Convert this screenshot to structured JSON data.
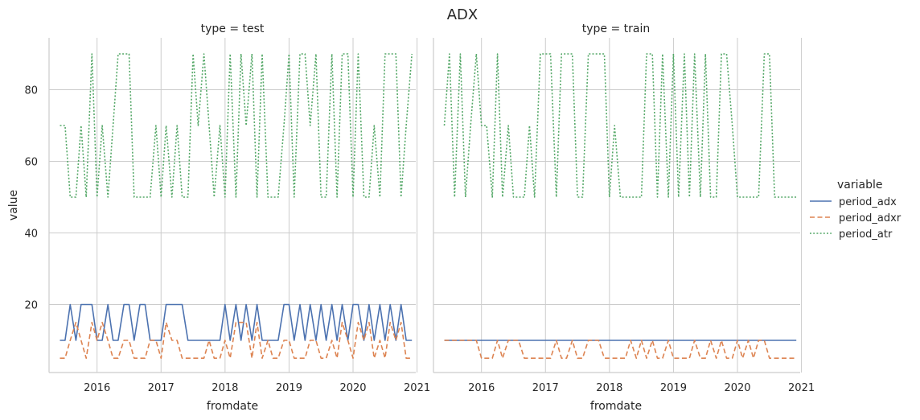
{
  "chart_data": {
    "type": "line",
    "title": "ADX",
    "xlabel": "fromdate",
    "ylabel": "value",
    "xlim": [
      2015.25,
      2020.98
    ],
    "ylim": [
      1,
      94.5
    ],
    "xticks": [
      2016,
      2017,
      2018,
      2019,
      2020,
      2021
    ],
    "yticks": [
      20,
      40,
      60,
      80
    ],
    "grid": true,
    "legend": {
      "title": "variable",
      "placement": "right"
    },
    "series_styles": [
      {
        "name": "period_adx",
        "color": "#4C72B0",
        "dash": "solid"
      },
      {
        "name": "period_adxr",
        "color": "#DD8452",
        "dash": "dashed"
      },
      {
        "name": "period_atr",
        "color": "#55A868",
        "dash": "dotted"
      }
    ],
    "panels": [
      {
        "title": "type = test",
        "series": [
          {
            "name": "period_adx",
            "x": [
              2015.42,
              2015.5,
              2015.58,
              2015.67,
              2015.75,
              2015.83,
              2015.92,
              2016.0,
              2016.08,
              2016.17,
              2016.25,
              2016.33,
              2016.42,
              2016.5,
              2016.58,
              2016.67,
              2016.75,
              2016.83,
              2016.92,
              2017.0,
              2017.08,
              2017.17,
              2017.25,
              2017.33,
              2017.42,
              2017.5,
              2017.58,
              2017.67,
              2017.75,
              2017.83,
              2017.92,
              2018.0,
              2018.08,
              2018.17,
              2018.25,
              2018.33,
              2018.42,
              2018.5,
              2018.58,
              2018.67,
              2018.75,
              2018.83,
              2018.92,
              2019.0,
              2019.08,
              2019.17,
              2019.25,
              2019.33,
              2019.42,
              2019.5,
              2019.58,
              2019.67,
              2019.75,
              2019.83,
              2019.92,
              2020.0,
              2020.08,
              2020.17,
              2020.25,
              2020.33,
              2020.42,
              2020.5,
              2020.58,
              2020.67,
              2020.75,
              2020.83,
              2020.92
            ],
            "y": [
              10,
              10,
              20,
              10,
              20,
              20,
              20,
              10,
              10,
              20,
              10,
              10,
              20,
              20,
              10,
              20,
              20,
              10,
              10,
              10,
              20,
              20,
              20,
              20,
              10,
              10,
              10,
              10,
              10,
              10,
              10,
              20,
              10,
              20,
              10,
              20,
              10,
              20,
              10,
              10,
              10,
              10,
              20,
              20,
              10,
              20,
              10,
              20,
              10,
              20,
              10,
              20,
              10,
              20,
              10,
              20,
              20,
              10,
              20,
              10,
              20,
              10,
              20,
              10,
              20,
              10,
              10
            ]
          },
          {
            "name": "period_adxr",
            "x": [
              2015.42,
              2015.5,
              2015.58,
              2015.67,
              2015.75,
              2015.83,
              2015.92,
              2016.0,
              2016.08,
              2016.17,
              2016.25,
              2016.33,
              2016.42,
              2016.5,
              2016.58,
              2016.67,
              2016.75,
              2016.83,
              2016.92,
              2017.0,
              2017.08,
              2017.17,
              2017.25,
              2017.33,
              2017.42,
              2017.5,
              2017.58,
              2017.67,
              2017.75,
              2017.83,
              2017.92,
              2018.0,
              2018.08,
              2018.17,
              2018.25,
              2018.33,
              2018.42,
              2018.5,
              2018.58,
              2018.67,
              2018.75,
              2018.83,
              2018.92,
              2019.0,
              2019.08,
              2019.17,
              2019.25,
              2019.33,
              2019.42,
              2019.5,
              2019.58,
              2019.67,
              2019.75,
              2019.83,
              2019.92,
              2020.0,
              2020.08,
              2020.17,
              2020.25,
              2020.33,
              2020.42,
              2020.5,
              2020.58,
              2020.67,
              2020.75,
              2020.83,
              2020.92
            ],
            "y": [
              5,
              5,
              10,
              15,
              10,
              5,
              15,
              10,
              15,
              10,
              5,
              5,
              10,
              10,
              5,
              5,
              5,
              10,
              10,
              5,
              15,
              10,
              10,
              5,
              5,
              5,
              5,
              5,
              10,
              5,
              5,
              10,
              5,
              15,
              15,
              15,
              5,
              15,
              5,
              10,
              5,
              5,
              10,
              10,
              5,
              5,
              5,
              10,
              10,
              5,
              5,
              10,
              5,
              15,
              10,
              5,
              15,
              10,
              15,
              5,
              10,
              5,
              15,
              10,
              15,
              5,
              5
            ]
          },
          {
            "name": "period_atr",
            "x": [
              2015.42,
              2015.5,
              2015.58,
              2015.67,
              2015.75,
              2015.83,
              2015.92,
              2016.0,
              2016.08,
              2016.17,
              2016.25,
              2016.33,
              2016.42,
              2016.5,
              2016.58,
              2016.67,
              2016.75,
              2016.83,
              2016.92,
              2017.0,
              2017.08,
              2017.17,
              2017.25,
              2017.33,
              2017.42,
              2017.5,
              2017.58,
              2017.67,
              2017.75,
              2017.83,
              2017.92,
              2018.0,
              2018.08,
              2018.17,
              2018.25,
              2018.33,
              2018.42,
              2018.5,
              2018.58,
              2018.67,
              2018.75,
              2018.83,
              2018.92,
              2019.0,
              2019.08,
              2019.17,
              2019.25,
              2019.33,
              2019.42,
              2019.5,
              2019.58,
              2019.67,
              2019.75,
              2019.83,
              2019.92,
              2020.0,
              2020.08,
              2020.17,
              2020.25,
              2020.33,
              2020.42,
              2020.5,
              2020.58,
              2020.67,
              2020.75,
              2020.83,
              2020.92
            ],
            "y": [
              70,
              70,
              50,
              50,
              70,
              50,
              90,
              50,
              70,
              50,
              70,
              90,
              90,
              90,
              50,
              50,
              50,
              50,
              70,
              50,
              70,
              50,
              70,
              50,
              50,
              90,
              70,
              90,
              70,
              50,
              70,
              50,
              90,
              50,
              90,
              70,
              90,
              50,
              90,
              50,
              50,
              50,
              70,
              90,
              50,
              90,
              90,
              70,
              90,
              50,
              50,
              90,
              50,
              90,
              90,
              50,
              90,
              50,
              50,
              70,
              50,
              90,
              90,
              90,
              50,
              70,
              90
            ]
          }
        ]
      },
      {
        "title": "type = train",
        "series": [
          {
            "name": "period_adx",
            "x": [
              2015.42,
              2020.92
            ],
            "y": [
              10,
              10
            ]
          },
          {
            "name": "period_adxr",
            "x": [
              2015.42,
              2015.5,
              2015.58,
              2015.67,
              2015.75,
              2015.83,
              2015.92,
              2016.0,
              2016.08,
              2016.17,
              2016.25,
              2016.33,
              2016.42,
              2016.5,
              2016.58,
              2016.67,
              2016.75,
              2016.83,
              2016.92,
              2017.0,
              2017.08,
              2017.17,
              2017.25,
              2017.33,
              2017.42,
              2017.5,
              2017.58,
              2017.67,
              2017.75,
              2017.83,
              2017.92,
              2018.0,
              2018.08,
              2018.17,
              2018.25,
              2018.33,
              2018.42,
              2018.5,
              2018.58,
              2018.67,
              2018.75,
              2018.83,
              2018.92,
              2019.0,
              2019.08,
              2019.17,
              2019.25,
              2019.33,
              2019.42,
              2019.5,
              2019.58,
              2019.67,
              2019.75,
              2019.83,
              2019.92,
              2020.0,
              2020.08,
              2020.17,
              2020.25,
              2020.33,
              2020.42,
              2020.5,
              2020.58,
              2020.67,
              2020.75,
              2020.83,
              2020.92
            ],
            "y": [
              10,
              10,
              10,
              10,
              10,
              10,
              10,
              5,
              5,
              5,
              10,
              5,
              10,
              10,
              10,
              5,
              5,
              5,
              5,
              5,
              5,
              10,
              5,
              5,
              10,
              5,
              5,
              10,
              10,
              10,
              5,
              5,
              5,
              5,
              5,
              10,
              5,
              10,
              5,
              10,
              5,
              5,
              10,
              5,
              5,
              5,
              5,
              10,
              5,
              5,
              10,
              5,
              10,
              5,
              5,
              10,
              5,
              10,
              5,
              10,
              10,
              5,
              5,
              5,
              5,
              5,
              5
            ]
          },
          {
            "name": "period_atr",
            "x": [
              2015.42,
              2015.5,
              2015.58,
              2015.67,
              2015.75,
              2015.83,
              2015.92,
              2016.0,
              2016.08,
              2016.17,
              2016.25,
              2016.33,
              2016.42,
              2016.5,
              2016.58,
              2016.67,
              2016.75,
              2016.83,
              2016.92,
              2017.0,
              2017.08,
              2017.17,
              2017.25,
              2017.33,
              2017.42,
              2017.5,
              2017.58,
              2017.67,
              2017.75,
              2017.83,
              2017.92,
              2018.0,
              2018.08,
              2018.17,
              2018.25,
              2018.33,
              2018.42,
              2018.5,
              2018.58,
              2018.67,
              2018.75,
              2018.83,
              2018.92,
              2019.0,
              2019.08,
              2019.17,
              2019.25,
              2019.33,
              2019.42,
              2019.5,
              2019.58,
              2019.67,
              2019.75,
              2019.83,
              2019.92,
              2020.0,
              2020.08,
              2020.17,
              2020.25,
              2020.33,
              2020.42,
              2020.5,
              2020.58,
              2020.67,
              2020.75,
              2020.83,
              2020.92
            ],
            "y": [
              70,
              90,
              50,
              90,
              50,
              70,
              90,
              70,
              70,
              50,
              90,
              50,
              70,
              50,
              50,
              50,
              70,
              50,
              90,
              90,
              90,
              50,
              90,
              90,
              90,
              50,
              50,
              90,
              90,
              90,
              90,
              50,
              70,
              50,
              50,
              50,
              50,
              50,
              90,
              90,
              50,
              90,
              50,
              90,
              50,
              90,
              50,
              90,
              50,
              90,
              50,
              50,
              90,
              90,
              70,
              50,
              50,
              50,
              50,
              50,
              90,
              90,
              50,
              50,
              50,
              50,
              50
            ]
          }
        ]
      }
    ]
  }
}
